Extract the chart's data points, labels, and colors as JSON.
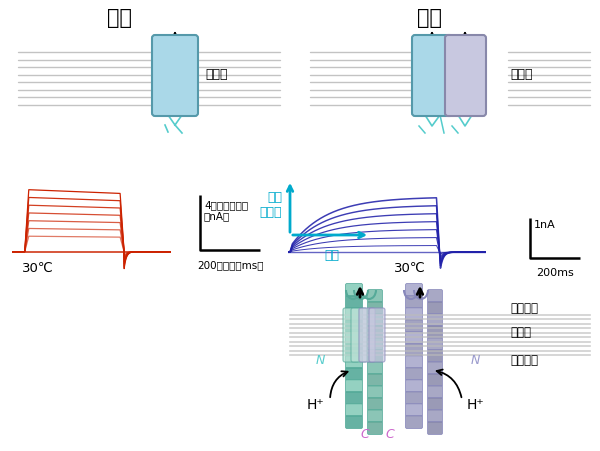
{
  "tanDoku": "単独",
  "pea": "ペア",
  "saibo_maku": "細脹膜",
  "label_4nA": "4ナノアンペア\n（nA）",
  "label_200ms": "200ミリ秒（ms）",
  "label_suiso": "水素\nイオン",
  "label_jikan": "時間",
  "label_1nA": "1nA",
  "label_200ms_r": "200ms",
  "label_30C_l": "30℃",
  "label_30C_r": "30℃",
  "label_kochu_soto": "好中球外",
  "label_kochu_nai": "好中球内",
  "label_saibo_maku2": "細脹膜",
  "red_color": "#cc2200",
  "blue_color": "#2222aa",
  "cyan_color": "#00aacc",
  "bg_color": "#ffffff",
  "n_red_traces": 7,
  "n_blue_traces": 7,
  "membrane_color": "#999999",
  "teal_color": "#88ccbb",
  "purple_color": "#aaaacc",
  "dark_teal": "#55aa99",
  "dark_purple": "#8888bb"
}
